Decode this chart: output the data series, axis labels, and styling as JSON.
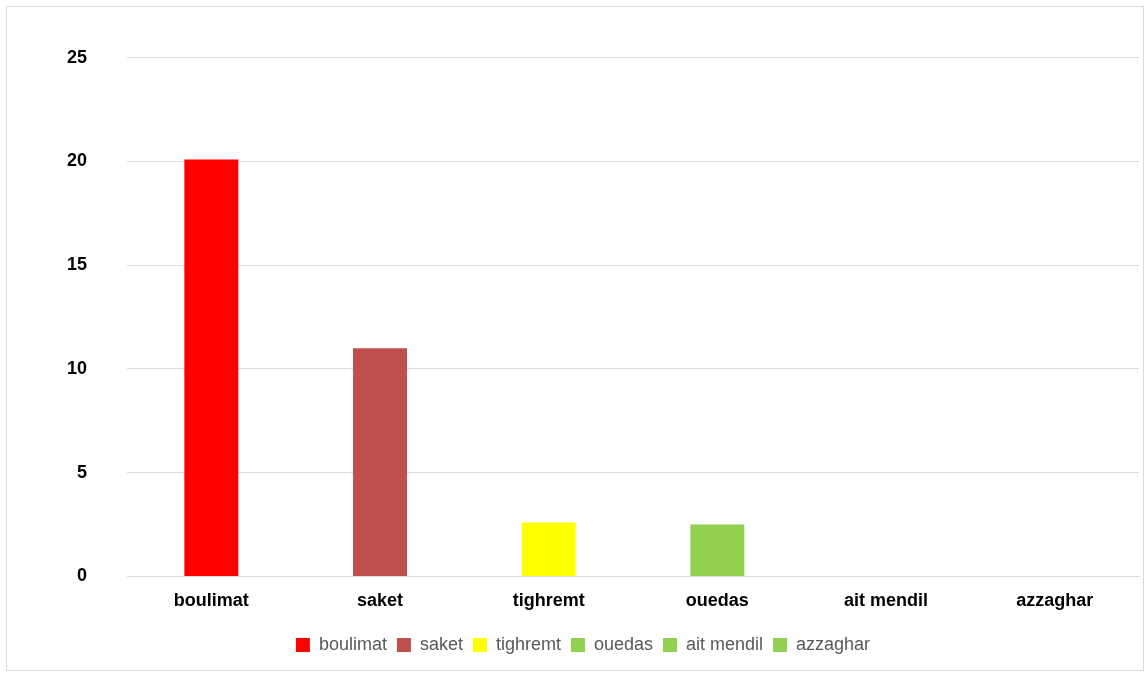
{
  "chart_data": {
    "type": "bar",
    "categories": [
      "boulimat",
      "saket",
      "tighremt",
      "ouedas",
      "ait mendil",
      "azzaghar"
    ],
    "series": [
      {
        "name": "boulimat",
        "color": "#ff0000",
        "values": [
          20.1,
          null,
          null,
          null,
          null,
          null
        ]
      },
      {
        "name": "saket",
        "color": "#c0504d",
        "values": [
          null,
          11,
          null,
          null,
          null,
          null
        ]
      },
      {
        "name": "tighremt",
        "color": "#ffff00",
        "values": [
          null,
          null,
          2.6,
          null,
          null,
          null
        ]
      },
      {
        "name": "ouedas",
        "color": "#92d050",
        "values": [
          null,
          null,
          null,
          2.5,
          null,
          null
        ]
      },
      {
        "name": "ait mendil",
        "color": "#92d050",
        "values": [
          null,
          null,
          null,
          null,
          0,
          null
        ]
      },
      {
        "name": "azzaghar",
        "color": "#92d050",
        "values": [
          null,
          null,
          null,
          null,
          null,
          0
        ]
      }
    ],
    "ylim": [
      0,
      25
    ],
    "yticks": [
      0,
      5,
      10,
      15,
      20,
      25
    ],
    "grid": "y",
    "legend": "bottom"
  }
}
